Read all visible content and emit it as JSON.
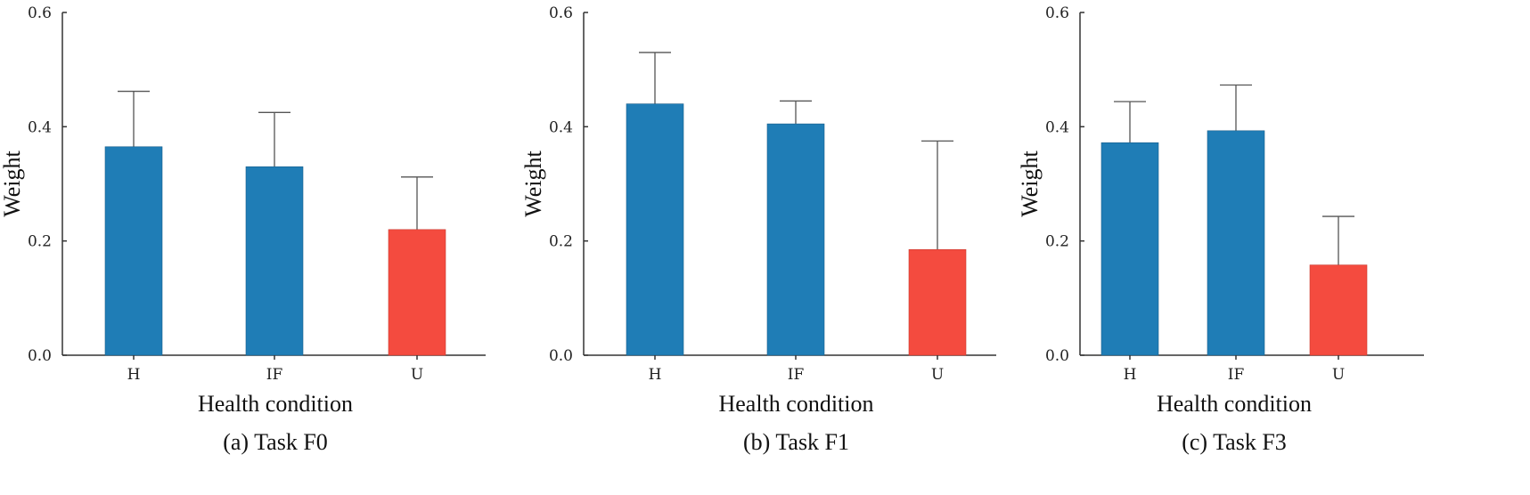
{
  "chart_data": [
    {
      "type": "bar",
      "caption": "(a) Task F0",
      "xlabel": "Health condition",
      "ylabel": "Weight",
      "ylim": [
        0,
        0.6
      ],
      "yticks": [
        "0.0",
        "0.2",
        "0.4",
        "0.6"
      ],
      "categories": [
        "H",
        "IF",
        "U"
      ],
      "values": [
        0.365,
        0.33,
        0.22
      ],
      "errors": [
        0.097,
        0.095,
        0.092
      ],
      "colors": [
        "#1f7db6",
        "#1f7db6",
        "#f44b3f"
      ]
    },
    {
      "type": "bar",
      "caption": "(b) Task F1",
      "xlabel": "Health condition",
      "ylabel": "Weight",
      "ylim": [
        0,
        0.6
      ],
      "yticks": [
        "0.0",
        "0.2",
        "0.4",
        "0.6"
      ],
      "categories": [
        "H",
        "IF",
        "U"
      ],
      "values": [
        0.44,
        0.405,
        0.185
      ],
      "errors": [
        0.09,
        0.04,
        0.19
      ],
      "colors": [
        "#1f7db6",
        "#1f7db6",
        "#f44b3f"
      ]
    },
    {
      "type": "bar",
      "caption": "(c) Task F3",
      "xlabel": "Health condition",
      "ylabel": "Weight",
      "ylim": [
        0,
        0.6
      ],
      "yticks": [
        "0.0",
        "0.2",
        "0.4",
        "0.6"
      ],
      "categories": [
        "H",
        "IF",
        "U"
      ],
      "values": [
        0.372,
        0.393,
        0.158
      ],
      "errors": [
        0.072,
        0.08,
        0.085
      ],
      "colors": [
        "#1f7db6",
        "#1f7db6",
        "#f44b3f"
      ]
    }
  ]
}
